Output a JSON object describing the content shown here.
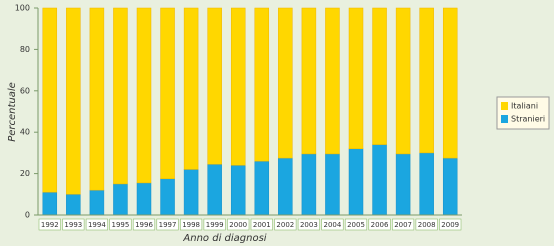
{
  "chart_data": {
    "type": "stacked-bar",
    "y_label": "Percentuale",
    "x_label": "Anno di diagnosi",
    "categories": [
      "1992",
      "1993",
      "1994",
      "1995",
      "1996",
      "1997",
      "1998",
      "1999",
      "2000",
      "2001",
      "2002",
      "2003",
      "2004",
      "2005",
      "2006",
      "2007",
      "2008",
      "2009"
    ],
    "series": [
      {
        "name": "Stranieri",
        "color": "#1ba6e0",
        "values": [
          11,
          10,
          12,
          15,
          15.5,
          17.5,
          22,
          24.5,
          24,
          26,
          27.5,
          29.5,
          29.5,
          32,
          34,
          29.5,
          30,
          27.5
        ]
      },
      {
        "name": "Italiani",
        "color": "#ffd700",
        "values": [
          89,
          90,
          88,
          85,
          84.5,
          82.5,
          78,
          75.5,
          76,
          74,
          72.5,
          70.5,
          70.5,
          68,
          66,
          70.5,
          70,
          72.5
        ]
      }
    ],
    "ylim": [
      0,
      100
    ],
    "yticks": [
      0,
      20,
      40,
      60,
      80,
      100
    ],
    "legend": "right"
  }
}
